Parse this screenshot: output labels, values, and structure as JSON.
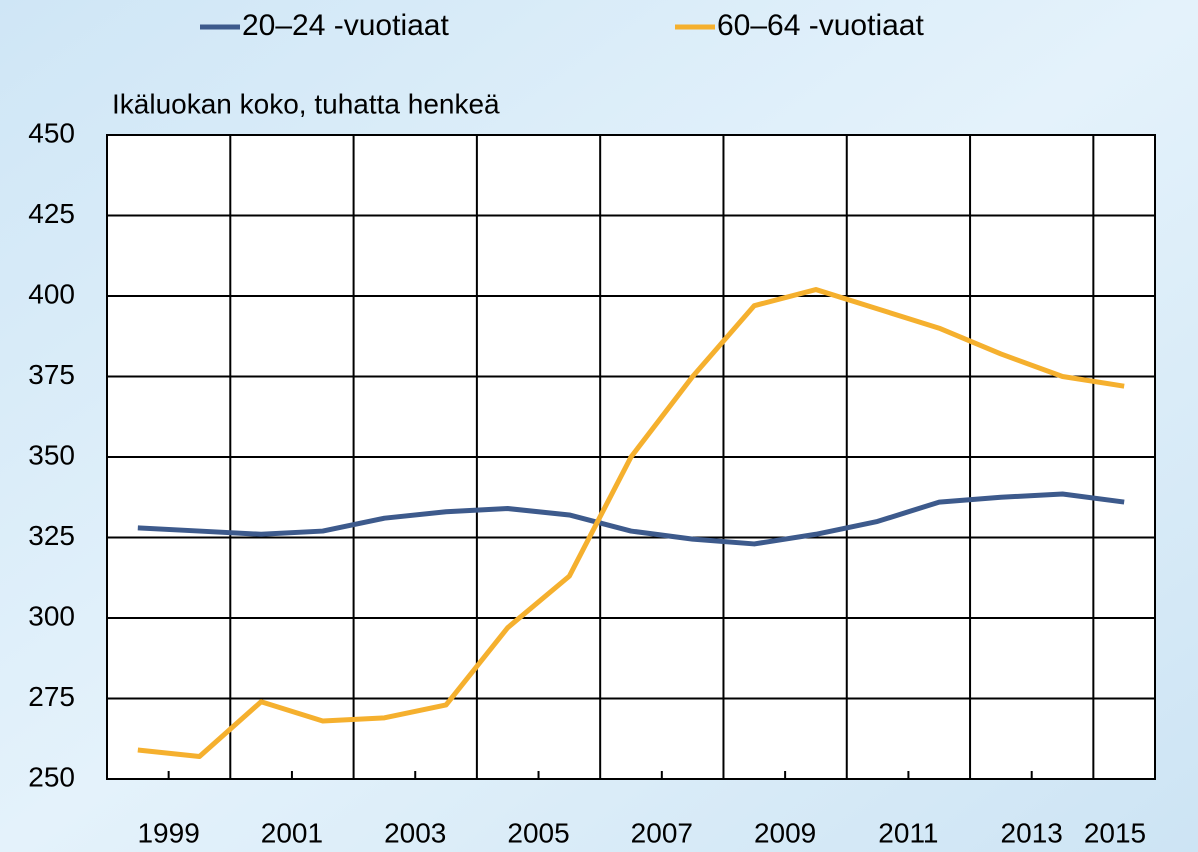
{
  "chart_data": {
    "type": "line",
    "legend_position": "top",
    "ylabel": "Ikäluokan koko, tuhatta henkeä",
    "x": [
      1998.5,
      1999.5,
      2000.5,
      2001.5,
      2002.5,
      2003.5,
      2004.5,
      2005.5,
      2006.5,
      2007.5,
      2008.5,
      2009.5,
      2010.5,
      2011.5,
      2012.5,
      2013.5,
      2014.5
    ],
    "series": [
      {
        "name": "20–24 -vuotiaat",
        "color": "#3d5a8c",
        "values": [
          328,
          327,
          326,
          327,
          331,
          333,
          334,
          332,
          327,
          324.5,
          323,
          326,
          330,
          336,
          337.5,
          338.5,
          336
        ]
      },
      {
        "name": "60–64 -vuotiaat",
        "color": "#f5b02e",
        "values": [
          259,
          257,
          274,
          268,
          269,
          273,
          297,
          313,
          350,
          375,
          397,
          402,
          396,
          390,
          382,
          375,
          372
        ]
      }
    ],
    "xlim": [
      1998,
      2015
    ],
    "xticks": [
      1999,
      2001,
      2003,
      2005,
      2007,
      2009,
      2011,
      2013,
      2015
    ],
    "ylim": [
      250,
      450
    ],
    "yticks": [
      250,
      275,
      300,
      325,
      350,
      375,
      400,
      425,
      450
    ],
    "grid": true
  }
}
